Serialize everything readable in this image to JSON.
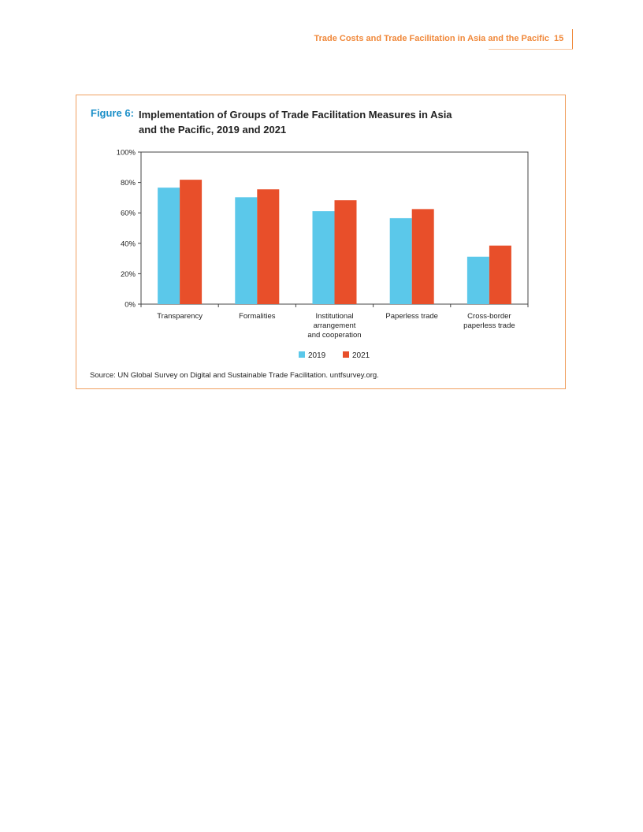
{
  "header": {
    "running_title": "Trade Costs and Trade Facilitation in Asia and the Pacific",
    "page_number": "15"
  },
  "figure": {
    "label": "Figure 6:",
    "title": "Implementation of Groups of Trade Facilitation Measures in Asia and the Pacific, 2019 and 2021",
    "source": "Source: UN Global Survey on Digital and Sustainable Trade Facilitation. untfsurvey.org."
  },
  "chart_data": {
    "type": "bar",
    "title": "Implementation of Groups of Trade Facilitation Measures in Asia and the Pacific, 2019 and 2021",
    "categories": [
      [
        "Transparency"
      ],
      [
        "Formalities"
      ],
      [
        "Institutional",
        "arrangement",
        "and cooperation"
      ],
      [
        "Paperless trade"
      ],
      [
        "Cross-border",
        "paperless trade"
      ]
    ],
    "series": [
      {
        "name": "2019",
        "color": "#5bc8ea",
        "values": [
          76.6,
          70.3,
          61.1,
          56.5,
          31.2
        ]
      },
      {
        "name": "2021",
        "color": "#e84f2a",
        "values": [
          81.8,
          75.5,
          68.3,
          62.5,
          38.5
        ]
      }
    ],
    "y_ticks": [
      "0%",
      "20%",
      "40%",
      "60%",
      "80%",
      "100%"
    ],
    "ylim": [
      0,
      100
    ],
    "xlabel": "",
    "ylabel": "",
    "grid": false,
    "legend_position": "bottom-center"
  }
}
